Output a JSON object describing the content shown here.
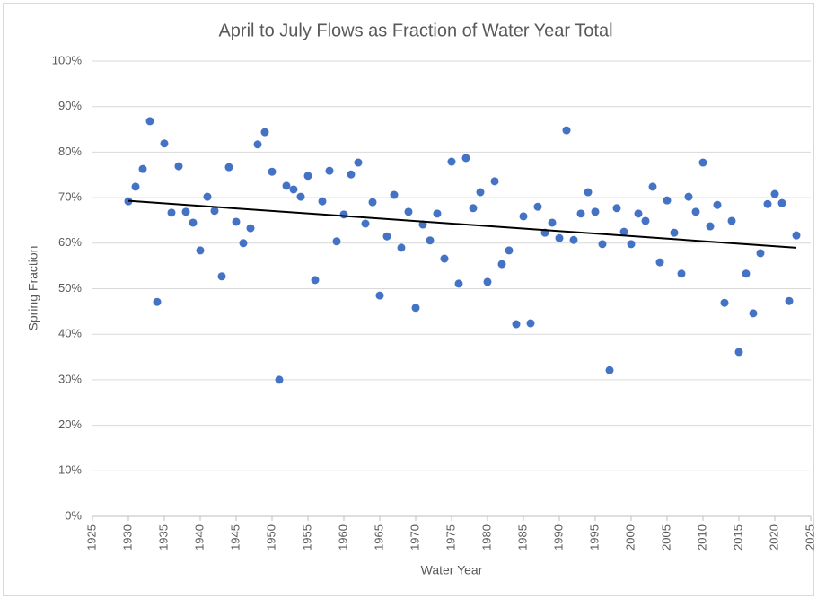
{
  "chart_data": {
    "type": "scatter",
    "title": "April to July Flows as Fraction of Water Year Total",
    "x_label": "Water Year",
    "y_label": "Spring Fraction",
    "series": [
      {
        "name": "Spring Fraction",
        "color": "#4472c4",
        "x": [
          1930,
          1931,
          1932,
          1933,
          1934,
          1935,
          1936,
          1937,
          1938,
          1939,
          1940,
          1941,
          1942,
          1943,
          1944,
          1945,
          1946,
          1947,
          1948,
          1949,
          1950,
          1951,
          1952,
          1953,
          1954,
          1955,
          1956,
          1957,
          1958,
          1959,
          1960,
          1961,
          1962,
          1963,
          1964,
          1965,
          1966,
          1967,
          1968,
          1969,
          1970,
          1971,
          1972,
          1973,
          1974,
          1975,
          1976,
          1977,
          1978,
          1979,
          1980,
          1981,
          1982,
          1983,
          1984,
          1985,
          1986,
          1987,
          1988,
          1989,
          1990,
          1991,
          1992,
          1993,
          1994,
          1995,
          1996,
          1997,
          1998,
          1999,
          2000,
          2001,
          2002,
          2003,
          2004,
          2005,
          2006,
          2007,
          2008,
          2009,
          2010,
          2011,
          2012,
          2013,
          2014,
          2015,
          2016,
          2017,
          2018,
          2019,
          2020,
          2021,
          2022,
          2023
        ],
        "values": [
          69.2,
          72.4,
          76.3,
          86.8,
          47.1,
          81.9,
          66.7,
          76.9,
          66.9,
          64.5,
          58.4,
          70.2,
          67.1,
          52.7,
          76.7,
          64.7,
          60.0,
          63.3,
          81.7,
          84.4,
          75.7,
          30.0,
          72.6,
          71.8,
          70.2,
          74.8,
          51.9,
          69.2,
          75.9,
          60.4,
          66.3,
          75.1,
          77.7,
          64.3,
          69.0,
          48.5,
          61.5,
          70.6,
          59.0,
          66.9,
          45.8,
          64.1,
          60.6,
          66.5,
          56.6,
          77.9,
          51.1,
          78.7,
          67.7,
          71.2,
          51.5,
          73.6,
          55.4,
          58.4,
          42.2,
          65.9,
          42.4,
          68.0,
          62.3,
          64.5,
          61.1,
          84.8,
          60.7,
          66.5,
          71.2,
          66.9,
          59.8,
          32.1,
          67.7,
          62.5,
          59.8,
          66.5,
          64.9,
          72.4,
          55.8,
          69.4,
          62.3,
          53.3,
          70.2,
          66.9,
          77.7,
          63.7,
          68.4,
          46.9,
          64.9,
          36.1,
          53.3,
          44.6,
          57.8,
          68.6,
          70.8,
          68.8,
          47.3,
          61.7
        ]
      }
    ],
    "trendline": {
      "color": "#000000",
      "x": [
        1930,
        2023
      ],
      "values": [
        69.3,
        59.0
      ]
    },
    "xlim": [
      1925,
      2025
    ],
    "xticks": [
      1925,
      1930,
      1935,
      1940,
      1945,
      1950,
      1955,
      1960,
      1965,
      1970,
      1975,
      1980,
      1985,
      1990,
      1995,
      2000,
      2005,
      2010,
      2015,
      2020,
      2025
    ],
    "ylim": [
      0,
      100
    ],
    "yticks": [
      {
        "value": 0,
        "label": "0%"
      },
      {
        "value": 10,
        "label": "10%"
      },
      {
        "value": 20,
        "label": "20%"
      },
      {
        "value": 30,
        "label": "30%"
      },
      {
        "value": 40,
        "label": "40%"
      },
      {
        "value": 50,
        "label": "50%"
      },
      {
        "value": 60,
        "label": "60%"
      },
      {
        "value": 70,
        "label": "70%"
      },
      {
        "value": 80,
        "label": "80%"
      },
      {
        "value": 90,
        "label": "90%"
      },
      {
        "value": 100,
        "label": "100%"
      }
    ],
    "grid": true
  }
}
